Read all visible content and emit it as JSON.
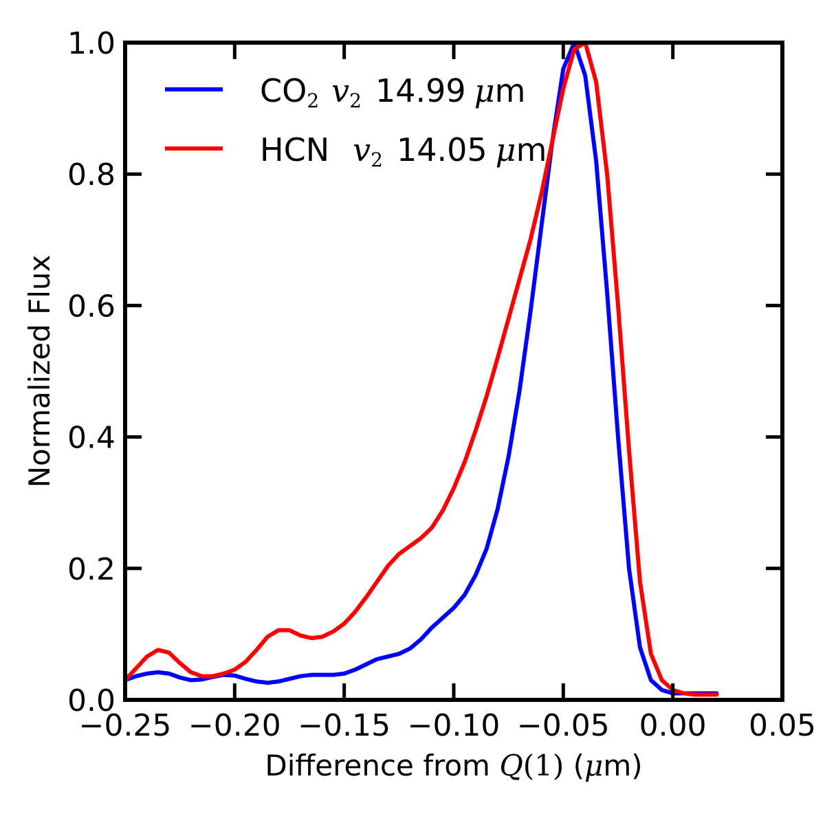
{
  "chart_data": {
    "type": "line",
    "xlabel_prefix": "Difference from ",
    "xlabel_math": "Q",
    "xlabel_math_arg": "(1)",
    "xlabel_suffix_open": " (",
    "xlabel_mu": "μ",
    "xlabel_unit": "m)",
    "ylabel": "Normalized Flux",
    "xlim": [
      -0.25,
      0.05
    ],
    "ylim": [
      0.0,
      1.0
    ],
    "xticks": [
      -0.25,
      -0.2,
      -0.15,
      -0.1,
      -0.05,
      0.0,
      0.05
    ],
    "xtick_labels": [
      "−0.25",
      "−0.20",
      "−0.15",
      "−0.10",
      "−0.05",
      "0.00",
      "0.05"
    ],
    "yticks": [
      0.0,
      0.2,
      0.4,
      0.6,
      0.8,
      1.0
    ],
    "ytick_labels": [
      "0.0",
      "0.2",
      "0.4",
      "0.6",
      "0.8",
      "1.0"
    ],
    "grid": false,
    "legend_position": "top-left",
    "series": [
      {
        "molecule": "CO",
        "molecule_sub": "2",
        "mode": "v",
        "mode_sub": "2",
        "wavelength": "14.99",
        "unit_mu": "μ",
        "unit": "m",
        "color": "#0000ff",
        "x": [
          -0.25,
          -0.245,
          -0.24,
          -0.235,
          -0.23,
          -0.225,
          -0.22,
          -0.215,
          -0.21,
          -0.205,
          -0.2,
          -0.195,
          -0.19,
          -0.185,
          -0.18,
          -0.175,
          -0.17,
          -0.165,
          -0.16,
          -0.155,
          -0.15,
          -0.145,
          -0.14,
          -0.135,
          -0.13,
          -0.125,
          -0.12,
          -0.115,
          -0.11,
          -0.105,
          -0.1,
          -0.095,
          -0.09,
          -0.085,
          -0.08,
          -0.075,
          -0.07,
          -0.065,
          -0.06,
          -0.055,
          -0.05,
          -0.045,
          -0.04,
          -0.035,
          -0.03,
          -0.025,
          -0.02,
          -0.015,
          -0.01,
          -0.005,
          0.0,
          0.005,
          0.01,
          0.015,
          0.02
        ],
        "y": [
          0.03,
          0.036,
          0.04,
          0.042,
          0.04,
          0.034,
          0.03,
          0.031,
          0.035,
          0.038,
          0.037,
          0.032,
          0.028,
          0.026,
          0.028,
          0.032,
          0.036,
          0.038,
          0.038,
          0.038,
          0.04,
          0.046,
          0.054,
          0.062,
          0.066,
          0.07,
          0.078,
          0.092,
          0.11,
          0.125,
          0.14,
          0.16,
          0.19,
          0.23,
          0.29,
          0.37,
          0.47,
          0.59,
          0.72,
          0.85,
          0.96,
          1.0,
          0.95,
          0.82,
          0.62,
          0.4,
          0.2,
          0.08,
          0.03,
          0.015,
          0.01,
          0.01,
          0.01,
          0.01,
          0.01
        ]
      },
      {
        "molecule": "HCN",
        "molecule_sub": "",
        "mode": "v",
        "mode_sub": "2",
        "wavelength": "14.05",
        "unit_mu": "μ",
        "unit": "m",
        "color": "#ff0000",
        "x": [
          -0.25,
          -0.245,
          -0.24,
          -0.235,
          -0.23,
          -0.225,
          -0.22,
          -0.215,
          -0.21,
          -0.205,
          -0.2,
          -0.195,
          -0.19,
          -0.185,
          -0.18,
          -0.175,
          -0.17,
          -0.165,
          -0.16,
          -0.155,
          -0.15,
          -0.145,
          -0.14,
          -0.135,
          -0.13,
          -0.125,
          -0.12,
          -0.115,
          -0.11,
          -0.105,
          -0.1,
          -0.095,
          -0.09,
          -0.085,
          -0.08,
          -0.075,
          -0.07,
          -0.065,
          -0.06,
          -0.055,
          -0.05,
          -0.045,
          -0.04,
          -0.035,
          -0.03,
          -0.025,
          -0.02,
          -0.015,
          -0.01,
          -0.005,
          0.0,
          0.005,
          0.01,
          0.015,
          0.02
        ],
        "y": [
          0.03,
          0.048,
          0.066,
          0.076,
          0.072,
          0.056,
          0.042,
          0.036,
          0.036,
          0.04,
          0.046,
          0.058,
          0.076,
          0.096,
          0.106,
          0.106,
          0.098,
          0.094,
          0.096,
          0.104,
          0.116,
          0.134,
          0.156,
          0.18,
          0.204,
          0.222,
          0.234,
          0.246,
          0.262,
          0.288,
          0.322,
          0.362,
          0.41,
          0.462,
          0.52,
          0.58,
          0.64,
          0.7,
          0.77,
          0.85,
          0.93,
          0.99,
          1.0,
          0.94,
          0.8,
          0.6,
          0.38,
          0.18,
          0.07,
          0.03,
          0.015,
          0.01,
          0.008,
          0.008,
          0.008
        ]
      }
    ]
  }
}
